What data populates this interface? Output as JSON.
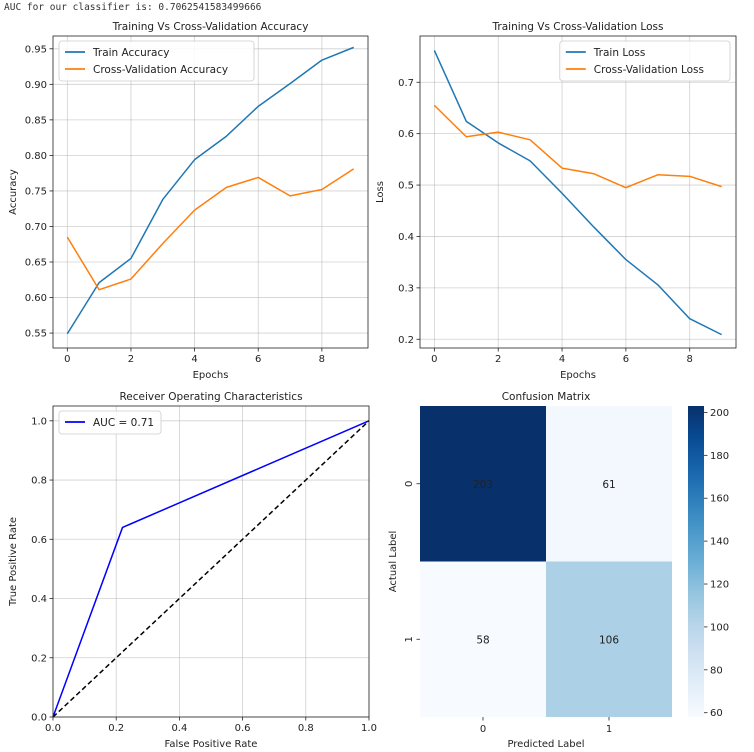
{
  "output_text": "AUC for our classifier is: 0.7062541583499666",
  "chart_data": [
    {
      "type": "line",
      "title": "Training Vs Cross-Validation Accuracy",
      "xlabel": "Epochs",
      "ylabel": "Accuracy",
      "x": [
        0,
        1,
        2,
        3,
        4,
        5,
        6,
        7,
        8,
        9
      ],
      "xlim": [
        -0.45,
        9.45
      ],
      "ylim": [
        0.529,
        0.968
      ],
      "xticks": [
        0,
        2,
        4,
        6,
        8
      ],
      "xtick_labels": [
        "0",
        "2",
        "4",
        "6",
        "8"
      ],
      "yticks": [
        0.55,
        0.6,
        0.65,
        0.7,
        0.75,
        0.8,
        0.85,
        0.9,
        0.95
      ],
      "ytick_labels": [
        "0.55",
        "0.60",
        "0.65",
        "0.70",
        "0.75",
        "0.80",
        "0.85",
        "0.90",
        "0.95"
      ],
      "grid": true,
      "legend_position": "top-left",
      "series": [
        {
          "name": "Train Accuracy",
          "color": "#1f77b4",
          "values": [
            0.549,
            0.621,
            0.655,
            0.738,
            0.794,
            0.827,
            0.869,
            0.901,
            0.934,
            0.952
          ]
        },
        {
          "name": "Cross-Validation Accuracy",
          "color": "#ff7f0e",
          "values": [
            0.685,
            0.611,
            0.626,
            0.676,
            0.723,
            0.755,
            0.769,
            0.743,
            0.752,
            0.781
          ]
        }
      ]
    },
    {
      "type": "line",
      "title": "Training Vs Cross-Validation Loss",
      "xlabel": "Epochs",
      "ylabel": "Loss",
      "x": [
        0,
        1,
        2,
        3,
        4,
        5,
        6,
        7,
        8,
        9
      ],
      "xlim": [
        -0.45,
        9.45
      ],
      "ylim": [
        0.183,
        0.79
      ],
      "xticks": [
        0,
        2,
        4,
        6,
        8
      ],
      "xtick_labels": [
        "0",
        "2",
        "4",
        "6",
        "8"
      ],
      "yticks": [
        0.2,
        0.3,
        0.4,
        0.5,
        0.6,
        0.7
      ],
      "ytick_labels": [
        "0.2",
        "0.3",
        "0.4",
        "0.5",
        "0.6",
        "0.7"
      ],
      "grid": true,
      "legend_position": "top-right",
      "series": [
        {
          "name": "Train Loss",
          "color": "#1f77b4",
          "values": [
            0.762,
            0.624,
            0.582,
            0.547,
            0.484,
            0.418,
            0.355,
            0.306,
            0.24,
            0.209
          ]
        },
        {
          "name": "Cross-Validation Loss",
          "color": "#ff7f0e",
          "values": [
            0.655,
            0.594,
            0.603,
            0.588,
            0.533,
            0.522,
            0.495,
            0.52,
            0.517,
            0.497
          ]
        }
      ]
    },
    {
      "type": "line",
      "title": "Receiver Operating Characteristics",
      "xlabel": "False Positive Rate",
      "ylabel": "True Positive Rate",
      "xlim": [
        0,
        1
      ],
      "ylim": [
        0,
        1.05
      ],
      "xticks": [
        0,
        0.2,
        0.4,
        0.6,
        0.8,
        1.0
      ],
      "xtick_labels": [
        "0.0",
        "0.2",
        "0.4",
        "0.6",
        "0.8",
        "1.0"
      ],
      "yticks": [
        0,
        0.2,
        0.4,
        0.6,
        0.8,
        1.0
      ],
      "ytick_labels": [
        "0.0",
        "0.2",
        "0.4",
        "0.6",
        "0.8",
        "1.0"
      ],
      "grid": true,
      "legend_position": "top-left",
      "series": [
        {
          "name": "AUC = 0.71",
          "color": "#0000ff",
          "style": "solid",
          "points": [
            [
              0,
              0
            ],
            [
              0.22,
              0.64
            ],
            [
              1,
              1
            ]
          ]
        },
        {
          "name": "chance",
          "color": "#000000",
          "style": "dashed",
          "show_in_legend": false,
          "points": [
            [
              0,
              0
            ],
            [
              1,
              1
            ]
          ]
        }
      ]
    },
    {
      "type": "heatmap",
      "title": "Confusion Matrix",
      "xlabel": "Predicted Label",
      "ylabel": "Actual Label",
      "row_labels": [
        "0",
        "1"
      ],
      "col_labels": [
        "0",
        "1"
      ],
      "values": [
        [
          203,
          61
        ],
        [
          58,
          106
        ]
      ],
      "colormap": "Blues",
      "colorbar": {
        "min": 58,
        "max": 203,
        "ticks": [
          60,
          80,
          100,
          120,
          140,
          160,
          180,
          200
        ],
        "tick_labels": [
          "60",
          "80",
          "100",
          "120",
          "140",
          "160",
          "180",
          "200"
        ]
      }
    }
  ]
}
